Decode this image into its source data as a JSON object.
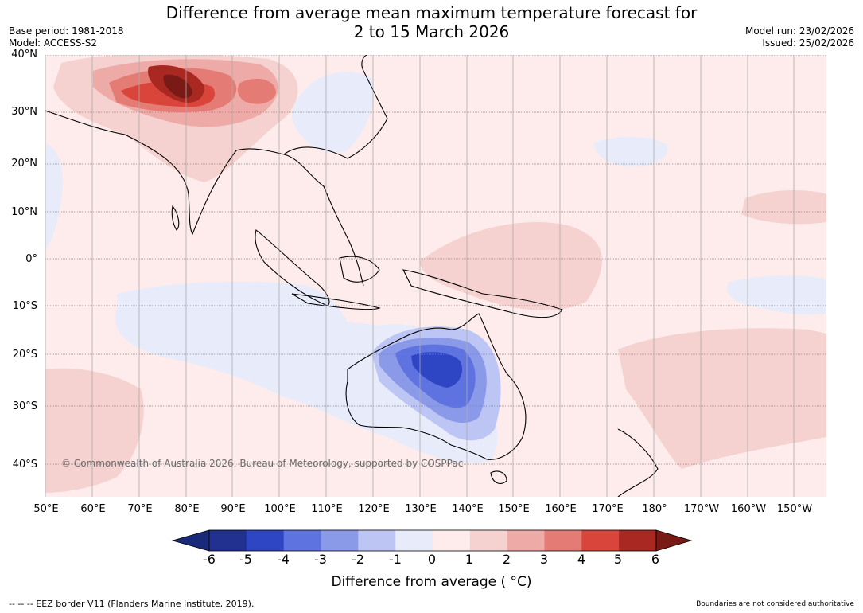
{
  "title_line1": "Difference from average mean maximum temperature forecast for",
  "title_line2": "2 to 15 March 2026",
  "base_period": "Base period: 1981-2018",
  "model": "Model: ACCESS-S2",
  "model_run": "Model run: 23/02/2026",
  "issued": "Issued: 25/02/2026",
  "copyright": "© Commonwealth of Australia 2026, Bureau of Meteorology, supported by COSPPac",
  "lat_labels": [
    "40°N",
    "30°N",
    "20°N",
    "10°N",
    "0°",
    "10°S",
    "20°S",
    "30°S",
    "40°S"
  ],
  "lon_labels": [
    "50°E",
    "60°E",
    "70°E",
    "80°E",
    "90°E",
    "100°E",
    "110°E",
    "120°E",
    "130°E",
    "140°E",
    "150°E",
    "160°E",
    "170°E",
    "180°",
    "170°W",
    "160°W",
    "150°W"
  ],
  "colorbar": {
    "ticks": [
      "-6",
      "-5",
      "-4",
      "-3",
      "-2",
      "-1",
      "0",
      "1",
      "2",
      "3",
      "4",
      "5",
      "6"
    ],
    "colors": [
      "#22318f",
      "#2e45c4",
      "#5e72e0",
      "#8a99e8",
      "#bcc5f3",
      "#e8ecfa",
      "#fdeceb",
      "#f5d2d0",
      "#eeaaa6",
      "#e47b74",
      "#d9453b",
      "#a92822"
    ],
    "under_color": "#1a2a7a",
    "over_color": "#7a1a16",
    "label": "Difference from average ( °C)"
  },
  "eez_note": "-- -- -- EEZ border V11 (Flanders Marine Institute, 2019).",
  "boundary_note": "Boundaries are not considered authoritative"
}
